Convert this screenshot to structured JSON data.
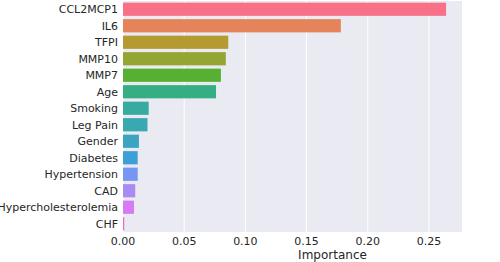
{
  "chart_data": {
    "type": "bar",
    "orientation": "horizontal",
    "xlabel": "Importance",
    "categories": [
      "CCL2MCP1",
      "IL6",
      "TFPI",
      "MMP10",
      "MMP7",
      "Age",
      "Smoking",
      "Leg Pain",
      "Gender",
      "Diabetes",
      "Hypertension",
      "CAD",
      "Hypercholesterolemia",
      "CHF"
    ],
    "values": [
      0.264,
      0.178,
      0.086,
      0.084,
      0.08,
      0.076,
      0.021,
      0.02,
      0.013,
      0.012,
      0.012,
      0.01,
      0.009,
      0.001
    ],
    "colors": [
      "#f77189",
      "#e5845a",
      "#b59a32",
      "#94a632",
      "#56b032",
      "#35ae84",
      "#37aba0",
      "#38a8b1",
      "#3aa4c1",
      "#3c9fd6",
      "#7796f4",
      "#a98bf4",
      "#d67bf4",
      "#f565cc"
    ],
    "xlim": [
      0,
      0.277
    ],
    "xticks": [
      {
        "value": 0,
        "label": "0.00"
      },
      {
        "value": 0.05,
        "label": "0.05"
      },
      {
        "value": 0.1,
        "label": "0.10"
      },
      {
        "value": 0.15,
        "label": "0.15"
      },
      {
        "value": 0.2,
        "label": "0.20"
      },
      {
        "value": 0.25,
        "label": "0.25"
      }
    ],
    "grid": true
  }
}
